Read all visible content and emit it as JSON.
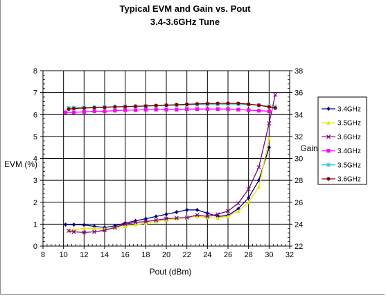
{
  "chart_data": {
    "type": "line",
    "title": "Typical EVM and Gain vs. Pout",
    "subtitle": "3.4-3.6GHz Tune",
    "xlabel": "Pout (dBm)",
    "ylabel_left": "EVM (%)",
    "ylabel_right": "Gain",
    "xlim": [
      8,
      32
    ],
    "ylim_left": [
      0,
      8
    ],
    "ylim_right": [
      22,
      38
    ],
    "x_ticks": [
      "8",
      "10",
      "12",
      "14",
      "16",
      "18",
      "20",
      "22",
      "24",
      "26",
      "28",
      "30",
      "32"
    ],
    "y_left_ticks": [
      "0",
      "1",
      "2",
      "3",
      "4",
      "5",
      "6",
      "7",
      "8"
    ],
    "y_right_ticks": [
      "22",
      "24",
      "26",
      "28",
      "30",
      "32",
      "34",
      "36",
      "38"
    ],
    "grid": true,
    "legend_position": "right",
    "series": [
      {
        "name": "3.4GHz",
        "axis": "left",
        "color": "#000080",
        "marker": "diamond",
        "x": [
          10.2,
          11,
          12,
          13,
          14,
          15,
          16,
          17,
          18,
          19,
          20,
          21,
          22,
          23,
          24,
          25,
          26,
          27,
          28,
          29,
          30
        ],
        "y": [
          0.98,
          0.98,
          0.96,
          0.9,
          0.85,
          0.92,
          1.05,
          1.15,
          1.25,
          1.35,
          1.45,
          1.55,
          1.65,
          1.65,
          1.5,
          1.35,
          1.4,
          1.7,
          2.2,
          3.0,
          4.5
        ]
      },
      {
        "name": "3.5GHz",
        "axis": "left",
        "color": "#e6e600",
        "marker": "triangle",
        "x": [
          10.5,
          11,
          12,
          13,
          14,
          15,
          16,
          17,
          18,
          19,
          20,
          21,
          22,
          23,
          24,
          25,
          26,
          27,
          28,
          29,
          30
        ],
        "y": [
          0.7,
          0.75,
          0.82,
          0.8,
          0.78,
          0.82,
          0.9,
          0.98,
          1.05,
          1.12,
          1.2,
          1.25,
          1.3,
          1.35,
          1.3,
          1.28,
          1.35,
          1.6,
          2.0,
          2.7,
          4.9
        ]
      },
      {
        "name": "3.6GHz",
        "axis": "left",
        "color": "#800080",
        "marker": "x",
        "x": [
          10.5,
          11,
          12,
          13,
          14,
          15,
          16,
          17,
          18,
          19,
          20,
          21,
          22,
          23,
          24,
          25,
          26,
          27,
          28,
          29,
          30,
          30.6
        ],
        "y": [
          0.7,
          0.65,
          0.62,
          0.65,
          0.72,
          0.85,
          1.0,
          1.08,
          1.12,
          1.18,
          1.25,
          1.28,
          1.3,
          1.42,
          1.35,
          1.45,
          1.6,
          1.95,
          2.6,
          3.6,
          5.6,
          6.9
        ]
      },
      {
        "name": "3.4GHz",
        "axis": "right",
        "color": "#ff00ff",
        "marker": "square",
        "x": [
          10.2,
          11,
          12,
          13,
          14,
          15,
          16,
          17,
          18,
          19,
          20,
          21,
          22,
          23,
          24,
          25,
          26,
          27,
          28,
          29,
          30
        ],
        "y": [
          34.2,
          34.2,
          34.25,
          34.3,
          34.3,
          34.35,
          34.4,
          34.4,
          34.45,
          34.45,
          34.45,
          34.45,
          34.5,
          34.5,
          34.5,
          34.5,
          34.5,
          34.45,
          34.4,
          34.35,
          34.3
        ]
      },
      {
        "name": "3.5GHz",
        "axis": "right",
        "color": "#33cccc",
        "marker": "star",
        "x": [
          10.5,
          11,
          12,
          13,
          14,
          15,
          16,
          17,
          18,
          19,
          20,
          21,
          22,
          23,
          24,
          25,
          26,
          27,
          28,
          29,
          30,
          30.6
        ],
        "y": [
          34.6,
          34.62,
          34.65,
          34.67,
          34.7,
          34.72,
          34.74,
          34.76,
          34.78,
          34.8,
          34.82,
          34.85,
          34.88,
          34.9,
          34.92,
          34.93,
          34.95,
          34.95,
          34.92,
          34.85,
          34.75,
          34.7
        ]
      },
      {
        "name": "3.6GHz",
        "axis": "right",
        "color": "#800000",
        "marker": "circle",
        "x": [
          10.5,
          11,
          12,
          13,
          14,
          15,
          16,
          17,
          18,
          19,
          20,
          21,
          22,
          23,
          24,
          25,
          26,
          27,
          28,
          29,
          30,
          30.6
        ],
        "y": [
          34.5,
          34.55,
          34.6,
          34.63,
          34.66,
          34.7,
          34.72,
          34.75,
          34.78,
          34.82,
          34.86,
          34.9,
          34.94,
          34.97,
          35.0,
          35.02,
          35.03,
          35.02,
          34.95,
          34.85,
          34.7,
          34.6
        ]
      }
    ]
  }
}
